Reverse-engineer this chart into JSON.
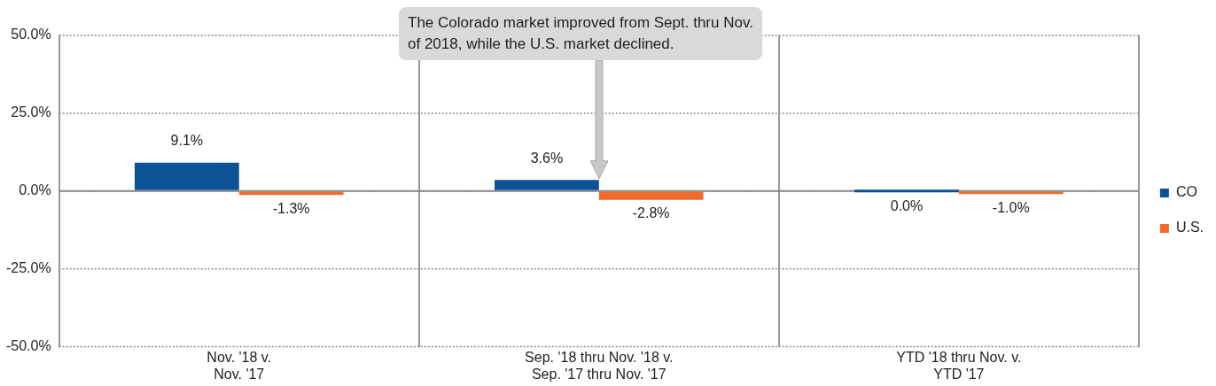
{
  "chart_data": {
    "type": "bar",
    "categories": [
      "Nov. '18 v.\nNov. '17",
      "Sep. '18 thru Nov. '18 v.\nSep. '17 thru Nov. '17",
      "YTD '18 thru Nov. v.\nYTD '17"
    ],
    "series": [
      {
        "name": "CO",
        "color": "#0b5394",
        "values": [
          9.1,
          3.6,
          0.0
        ],
        "value_labels": [
          "9.1%",
          "3.6%",
          "0.0%"
        ]
      },
      {
        "name": "U.S.",
        "color": "#f26b2a",
        "values": [
          -1.3,
          -2.8,
          -1.0
        ],
        "value_labels": [
          "-1.3%",
          "-2.8%",
          "-1.0%"
        ]
      }
    ],
    "ylim": [
      -50,
      50
    ],
    "yticks": [
      {
        "value": -50,
        "label": "-50.0%"
      },
      {
        "value": -25,
        "label": "-25.0%"
      },
      {
        "value": 0,
        "label": "0.0%"
      },
      {
        "value": 25,
        "label": "25.0%"
      },
      {
        "value": 50,
        "label": "50.0%"
      }
    ],
    "grid": true,
    "legend": "right",
    "ref_lines": [
      {
        "axis": "y",
        "value": 0,
        "color": "#888888"
      }
    ],
    "annotations": [
      "The Colorado market improved from Sept. thru Nov. of 2018, while the U.S. market declined."
    ]
  }
}
